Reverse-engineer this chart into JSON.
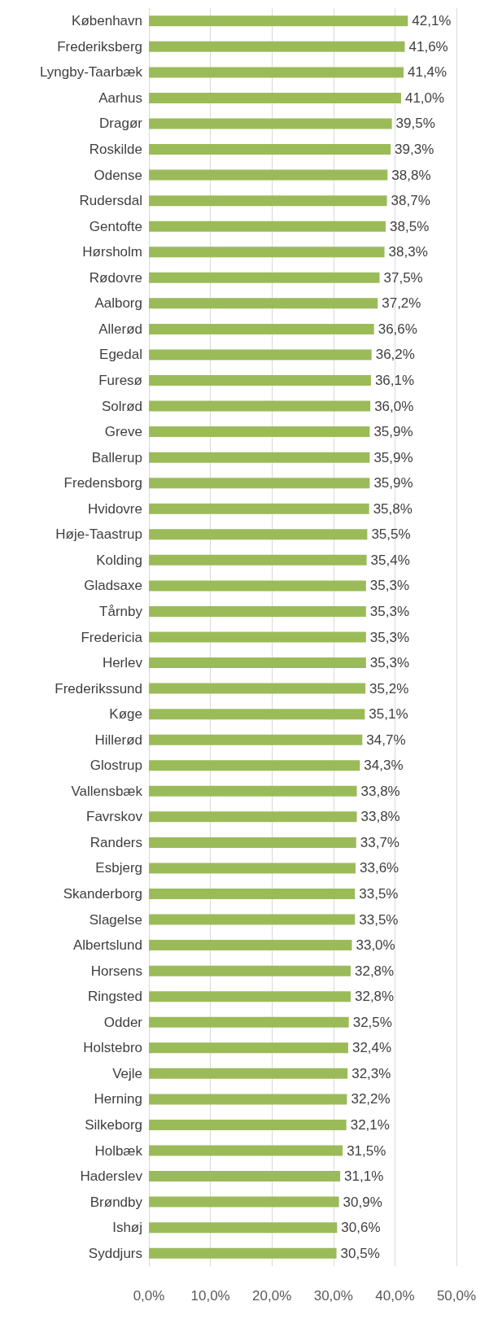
{
  "chart_data": {
    "type": "bar",
    "orientation": "horizontal",
    "categories": [
      "København",
      "Frederiksberg",
      "Lyngby-Taarbæk",
      "Aarhus",
      "Dragør",
      "Roskilde",
      "Odense",
      "Rudersdal",
      "Gentofte",
      "Hørsholm",
      "Rødovre",
      "Aalborg",
      "Allerød",
      "Egedal",
      "Furesø",
      "Solrød",
      "Greve",
      "Ballerup",
      "Fredensborg",
      "Hvidovre",
      "Høje-Taastrup",
      "Kolding",
      "Gladsaxe",
      "Tårnby",
      "Fredericia",
      "Herlev",
      "Frederikssund",
      "Køge",
      "Hillerød",
      "Glostrup",
      "Vallensbæk",
      "Favrskov",
      "Randers",
      "Esbjerg",
      "Skanderborg",
      "Slagelse",
      "Albertslund",
      "Horsens",
      "Ringsted",
      "Odder",
      "Holstebro",
      "Vejle",
      "Herning",
      "Silkeborg",
      "Holbæk",
      "Haderslev",
      "Brøndby",
      "Ishøj",
      "Syddjurs"
    ],
    "values": [
      42.1,
      41.6,
      41.4,
      41.0,
      39.5,
      39.3,
      38.8,
      38.7,
      38.5,
      38.3,
      37.5,
      37.2,
      36.6,
      36.2,
      36.1,
      36.0,
      35.9,
      35.9,
      35.9,
      35.8,
      35.5,
      35.4,
      35.3,
      35.3,
      35.3,
      35.3,
      35.2,
      35.1,
      34.7,
      34.3,
      33.8,
      33.8,
      33.7,
      33.6,
      33.5,
      33.5,
      33.0,
      32.8,
      32.8,
      32.5,
      32.4,
      32.3,
      32.2,
      32.1,
      31.5,
      31.1,
      30.9,
      30.6,
      30.5
    ],
    "value_labels": [
      "42,1%",
      "41,6%",
      "41,4%",
      "41,0%",
      "39,5%",
      "39,3%",
      "38,8%",
      "38,7%",
      "38,5%",
      "38,3%",
      "37,5%",
      "37,2%",
      "36,6%",
      "36,2%",
      "36,1%",
      "36,0%",
      "35,9%",
      "35,9%",
      "35,9%",
      "35,8%",
      "35,5%",
      "35,4%",
      "35,3%",
      "35,3%",
      "35,3%",
      "35,3%",
      "35,2%",
      "35,1%",
      "34,7%",
      "34,3%",
      "33,8%",
      "33,8%",
      "33,7%",
      "33,6%",
      "33,5%",
      "33,5%",
      "33,0%",
      "32,8%",
      "32,8%",
      "32,5%",
      "32,4%",
      "32,3%",
      "32,2%",
      "32,1%",
      "31,5%",
      "31,1%",
      "30,9%",
      "30,6%",
      "30,5%"
    ],
    "color": "#9bbb59",
    "xlim": [
      0,
      50
    ],
    "xticks": [
      {
        "value": 0,
        "label": "0,0%"
      },
      {
        "value": 10,
        "label": "10,0%"
      },
      {
        "value": 20,
        "label": "20,0%"
      },
      {
        "value": 30,
        "label": "30,0%"
      },
      {
        "value": 40,
        "label": "40,0%"
      },
      {
        "value": 50,
        "label": "50,0%"
      }
    ],
    "grid": "x"
  }
}
